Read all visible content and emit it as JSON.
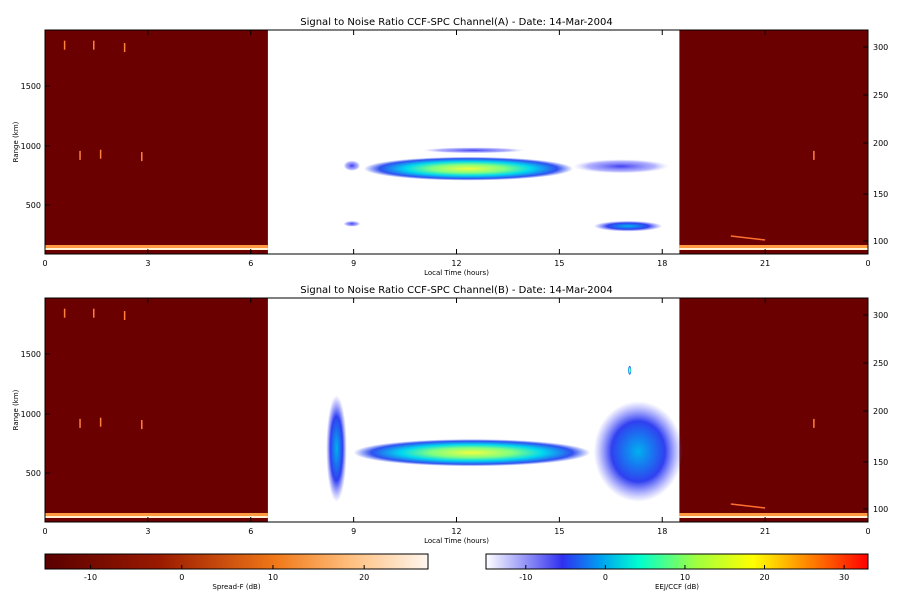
{
  "colors": {
    "spread_f_bg": "#6b0000",
    "eej_bg": "#ffffff"
  },
  "chart_data": [
    {
      "type": "heatmap",
      "title": "Signal to Noise Ratio CCF-SPC Channel(A) - Date: 14-Mar-2004",
      "xlabel": "Local Time (hours)",
      "ylabel": "Range (km)",
      "xlim": [
        0,
        24
      ],
      "ylim": [
        80,
        1970
      ],
      "y2lim": [
        88,
        320
      ],
      "x_ticks": [
        "0",
        "3",
        "6",
        "9",
        "12",
        "15",
        "18",
        "21",
        "0"
      ],
      "y_ticks": [
        "500",
        "1000",
        "1500"
      ],
      "y2_ticks": [
        "100",
        "150",
        "200",
        "250",
        "300"
      ],
      "spread_f_intervals": [
        [
          0,
          6.5
        ],
        [
          18.5,
          24
        ]
      ],
      "echo_regions": [
        {
          "x": [
            9.3,
            15.4
          ],
          "y": [
            700,
            900
          ],
          "peak_db": 12
        },
        {
          "x": [
            15.4,
            18.2
          ],
          "y": [
            760,
            880
          ],
          "peak_db": -8
        },
        {
          "x": [
            8.7,
            9.2
          ],
          "y": [
            780,
            870
          ],
          "peak_db": -10
        },
        {
          "x": [
            8.7,
            9.2
          ],
          "y": [
            310,
            360
          ],
          "peak_db": -10
        },
        {
          "x": [
            16.0,
            18.0
          ],
          "y": [
            270,
            360
          ],
          "peak_db": -5
        },
        {
          "x": [
            11.0,
            14.0
          ],
          "y": [
            930,
            980
          ],
          "peak_db": -10
        }
      ]
    },
    {
      "type": "heatmap",
      "title": "Signal to Noise Ratio CCF-SPC Channel(B) - Date: 14-Mar-2004",
      "xlabel": "Local Time (hours)",
      "ylabel": "Range (km)",
      "xlim": [
        0,
        24
      ],
      "ylim": [
        80,
        1970
      ],
      "y2lim": [
        88,
        320
      ],
      "x_ticks": [
        "0",
        "3",
        "6",
        "9",
        "12",
        "15",
        "18",
        "21",
        "0"
      ],
      "y_ticks": [
        "500",
        "1000",
        "1500"
      ],
      "y2_ticks": [
        "100",
        "150",
        "200",
        "250",
        "300"
      ],
      "spread_f_intervals": [
        [
          0,
          6.5
        ],
        [
          18.5,
          24
        ]
      ],
      "echo_regions": [
        {
          "x": [
            8.2,
            8.8
          ],
          "y": [
            250,
            1150
          ],
          "peak_db": 2
        },
        {
          "x": [
            9.0,
            15.9
          ],
          "y": [
            550,
            780
          ],
          "peak_db": 8
        },
        {
          "x": [
            16.0,
            18.6
          ],
          "y": [
            250,
            1100
          ],
          "peak_db": -3
        },
        {
          "x": [
            17.0,
            17.1
          ],
          "y": [
            1320,
            1400
          ],
          "peak_db": 5
        }
      ]
    }
  ],
  "colorbars": [
    {
      "label": "Spread-F (dB)",
      "ticks": [
        "-10",
        "0",
        "10",
        "20"
      ],
      "range": [
        -15,
        27
      ]
    },
    {
      "label": "EEJ/CCF (dB)",
      "ticks": [
        "-10",
        "0",
        "10",
        "20",
        "30"
      ],
      "range": [
        -15,
        33
      ]
    }
  ]
}
